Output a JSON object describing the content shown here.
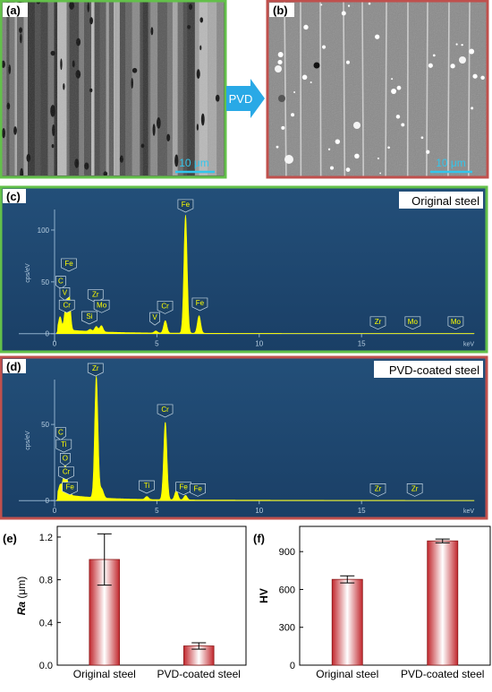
{
  "panels": {
    "a": {
      "label": "(a)",
      "scalebar_text": "10 μm",
      "frame_color": "#63c04a"
    },
    "b": {
      "label": "(b)",
      "scalebar_text": "10 μm",
      "frame_color": "#c0504d"
    },
    "arrow_text": "PVD",
    "c": {
      "label": "(c)",
      "title": "Original steel",
      "frame_color": "#63c04a"
    },
    "d": {
      "label": "(d)",
      "title": "PVD-coated steel",
      "frame_color": "#c0504d"
    },
    "e": {
      "label": "(e)"
    },
    "f": {
      "label": "(f)"
    }
  },
  "chart_data": [
    {
      "id": "c",
      "type": "line",
      "title": "Original steel",
      "xlabel": "keV",
      "ylabel": "cps/eV",
      "xlim": [
        0,
        20.5
      ],
      "ylim": [
        -8,
        125
      ],
      "x_ticks": [
        0,
        5,
        10,
        15
      ],
      "y_ticks": [
        0,
        50,
        100
      ],
      "peaks": [
        {
          "x": 0.27,
          "y": 12,
          "w": 0.07
        },
        {
          "x": 0.51,
          "y": 7,
          "w": 0.07
        },
        {
          "x": 0.71,
          "y": 34,
          "w": 0.07
        },
        {
          "x": 0.57,
          "y": 18,
          "w": 0.07
        },
        {
          "x": 2.04,
          "y": 5,
          "w": 0.08
        },
        {
          "x": 2.29,
          "y": 6,
          "w": 0.08
        },
        {
          "x": 1.74,
          "y": 2,
          "w": 0.08
        },
        {
          "x": 4.95,
          "y": 2,
          "w": 0.08
        },
        {
          "x": 5.41,
          "y": 12,
          "w": 0.08
        },
        {
          "x": 6.4,
          "y": 114,
          "w": 0.08
        },
        {
          "x": 7.06,
          "y": 17,
          "w": 0.08
        }
      ],
      "element_labels": [
        {
          "text": "C",
          "x": 0.3,
          "y": 45
        },
        {
          "text": "Fe",
          "x": 0.7,
          "y": 62
        },
        {
          "text": "V",
          "x": 0.5,
          "y": 34
        },
        {
          "text": "Cr",
          "x": 0.6,
          "y": 22
        },
        {
          "text": "Si",
          "x": 1.7,
          "y": 11
        },
        {
          "text": "Zr",
          "x": 2.0,
          "y": 32
        },
        {
          "text": "Mo",
          "x": 2.3,
          "y": 22
        },
        {
          "text": "V",
          "x": 4.9,
          "y": 10
        },
        {
          "text": "Cr",
          "x": 5.4,
          "y": 21
        },
        {
          "text": "Fe",
          "x": 6.4,
          "y": 119
        },
        {
          "text": "Fe",
          "x": 7.1,
          "y": 24
        },
        {
          "text": "Zr",
          "x": 15.8,
          "y": 6
        },
        {
          "text": "Mo",
          "x": 17.5,
          "y": 6
        },
        {
          "text": "Mo",
          "x": 19.6,
          "y": 6
        }
      ]
    },
    {
      "id": "d",
      "type": "line",
      "title": "PVD-coated steel",
      "xlabel": "keV",
      "ylabel": "cps/eV",
      "xlim": [
        0,
        20.5
      ],
      "ylim": [
        -4,
        83
      ],
      "x_ticks": [
        0,
        5,
        10,
        15
      ],
      "y_ticks": [
        0,
        50
      ],
      "peaks": [
        {
          "x": 0.28,
          "y": 6,
          "w": 0.07
        },
        {
          "x": 0.45,
          "y": 7,
          "w": 0.07
        },
        {
          "x": 0.52,
          "y": 10,
          "w": 0.07
        },
        {
          "x": 0.57,
          "y": 7,
          "w": 0.07
        },
        {
          "x": 0.71,
          "y": 4,
          "w": 0.07
        },
        {
          "x": 2.04,
          "y": 80,
          "w": 0.08
        },
        {
          "x": 2.3,
          "y": 6,
          "w": 0.09
        },
        {
          "x": 4.51,
          "y": 2,
          "w": 0.08
        },
        {
          "x": 5.41,
          "y": 51,
          "w": 0.08
        },
        {
          "x": 5.95,
          "y": 6,
          "w": 0.08
        },
        {
          "x": 6.4,
          "y": 3,
          "w": 0.08
        }
      ],
      "element_labels": [
        {
          "text": "C",
          "x": 0.3,
          "y": 41
        },
        {
          "text": "Ti",
          "x": 0.45,
          "y": 33
        },
        {
          "text": "O",
          "x": 0.52,
          "y": 24
        },
        {
          "text": "Cr",
          "x": 0.57,
          "y": 15
        },
        {
          "text": "Fe",
          "x": 0.75,
          "y": 5
        },
        {
          "text": "Zr",
          "x": 2.0,
          "y": 83
        },
        {
          "text": "Ti",
          "x": 4.5,
          "y": 6
        },
        {
          "text": "Cr",
          "x": 5.4,
          "y": 56
        },
        {
          "text": "Fe",
          "x": 6.3,
          "y": 5
        },
        {
          "text": "Fe",
          "x": 7.0,
          "y": 4
        },
        {
          "text": "Zr",
          "x": 15.8,
          "y": 4
        },
        {
          "text": "Zr",
          "x": 17.6,
          "y": 4
        }
      ]
    },
    {
      "id": "e",
      "type": "bar",
      "categories": [
        "Original steel",
        "PVD-coated steel"
      ],
      "values": [
        0.99,
        0.18
      ],
      "errors": [
        0.24,
        0.03
      ],
      "ylabel": "Ra (μm)",
      "ylim": [
        0,
        1.3
      ],
      "y_ticks": [
        0.0,
        0.4,
        0.8,
        1.2
      ],
      "y_tick_labels": [
        "0.0",
        "0.4",
        "0.8",
        "1.2"
      ]
    },
    {
      "id": "f",
      "type": "bar",
      "categories": [
        "Original steel",
        "PVD-coated steel"
      ],
      "values": [
        680,
        985
      ],
      "errors": [
        28,
        15
      ],
      "ylabel": "HV",
      "ylim": [
        0,
        1100
      ],
      "y_ticks": [
        0,
        300,
        600,
        900
      ],
      "y_tick_labels": [
        "0",
        "300",
        "600",
        "900"
      ]
    }
  ]
}
